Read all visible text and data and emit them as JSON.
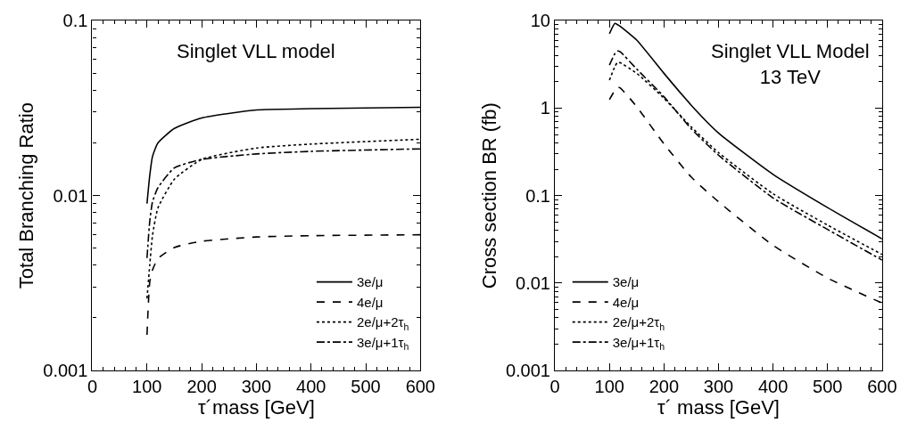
{
  "chart_data": [
    {
      "type": "line",
      "title": "Singlet VLL model",
      "xlabel": "τ´mass [GeV]",
      "ylabel": "Total Branching Ratio",
      "log": "y",
      "xlim": [
        0,
        600
      ],
      "xticks": [
        0,
        100,
        200,
        300,
        400,
        500,
        600
      ],
      "ylim": [
        0.001,
        0.1
      ],
      "yticks": [
        0.001,
        0.01,
        0.1
      ],
      "legend": "bottom right",
      "marker": "none",
      "x": [
        100,
        105,
        110,
        120,
        150,
        200,
        300,
        400,
        600
      ],
      "series": [
        {
          "name": "3e/μ",
          "color": "#000000",
          "line_style": "solid",
          "values": [
            0.009,
            0.013,
            0.0167,
            0.02,
            0.0242,
            0.0278,
            0.0309,
            0.0314,
            0.032
          ]
        },
        {
          "name": "4e/μ",
          "color": "#000000",
          "line_style": "dashed",
          "values": [
            0.0016,
            0.0032,
            0.00375,
            0.00436,
            0.00505,
            0.00548,
            0.0058,
            0.0059,
            0.00597
          ]
        },
        {
          "name": "2e/μ+2τ$_{h}$",
          "color": "#000000",
          "line_style": "dotted",
          "values": [
            0.00258,
            0.004,
            0.0059,
            0.0085,
            0.0124,
            0.0161,
            0.0187,
            0.0197,
            0.021
          ]
        },
        {
          "name": "3e/μ+1τ$_{h}$",
          "color": "#000000",
          "line_style": "dashdot",
          "values": [
            0.0044,
            0.0071,
            0.0092,
            0.0111,
            0.0144,
            0.0161,
            0.0173,
            0.0179,
            0.0185
          ]
        }
      ]
    },
    {
      "type": "line",
      "title": "Singlet VLL Model",
      "subtitle": "13 TeV",
      "xlabel": "τ´ mass [GeV]",
      "ylabel": "Cross section BR (fb)",
      "log": "y",
      "xlim": [
        0,
        600
      ],
      "xticks": [
        0,
        100,
        200,
        300,
        400,
        500,
        600
      ],
      "ylim": [
        0.001,
        10
      ],
      "yticks": [
        0.001,
        0.01,
        0.1,
        1,
        10
      ],
      "legend": "bottom left",
      "marker": "none",
      "x": [
        100,
        110,
        115,
        120,
        150,
        200,
        250,
        300,
        400,
        500,
        600
      ],
      "series": [
        {
          "name": "3e/μ",
          "color": "#000000",
          "line_style": "solid",
          "values": [
            7.1,
            9.3,
            9.0,
            8.6,
            6.0,
            2.5,
            1.08,
            0.52,
            0.175,
            0.073,
            0.032
          ]
        },
        {
          "name": "4e/μ",
          "color": "#000000",
          "line_style": "dashed",
          "values": [
            1.25,
            1.6,
            1.74,
            1.7,
            1.04,
            0.39,
            0.163,
            0.085,
            0.027,
            0.0114,
            0.0059
          ]
        },
        {
          "name": "2e/μ+2τ$_{h}$",
          "color": "#000000",
          "line_style": "dotted",
          "values": [
            2.09,
            3.0,
            3.35,
            3.3,
            2.5,
            1.3,
            0.61,
            0.31,
            0.105,
            0.046,
            0.0212
          ]
        },
        {
          "name": "3e/μ+1τ$_{h}$",
          "color": "#000000",
          "line_style": "dashdot",
          "values": [
            3.1,
            4.2,
            4.5,
            4.4,
            2.8,
            1.35,
            0.58,
            0.29,
            0.094,
            0.041,
            0.0183
          ]
        }
      ]
    }
  ]
}
